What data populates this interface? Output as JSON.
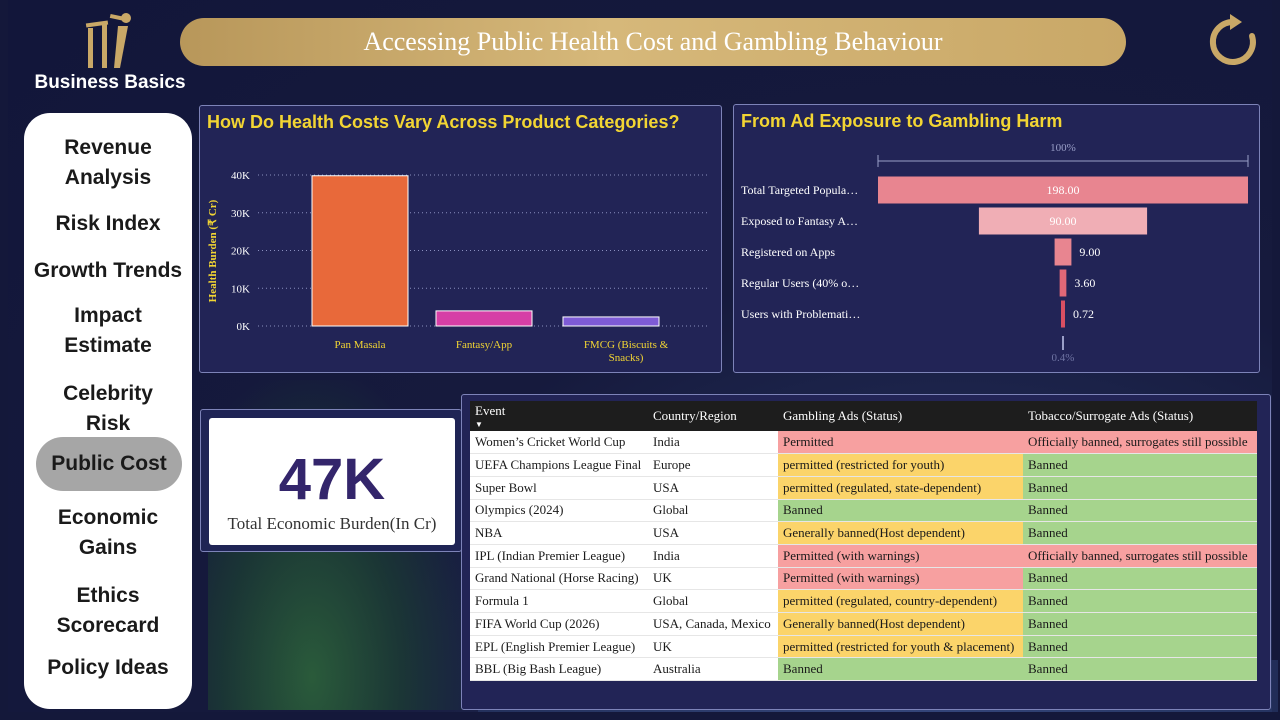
{
  "brand": {
    "name": "Business Basics"
  },
  "header": {
    "title": "Accessing Public Health Cost and Gambling Behaviour"
  },
  "nav": [
    {
      "label": "Revenue Analysis",
      "lines": [
        "Revenue",
        "Analysis"
      ],
      "active": false
    },
    {
      "label": "Risk Index",
      "lines": [
        "Risk Index"
      ],
      "active": false
    },
    {
      "label": "Growth Trends",
      "lines": [
        "Growth Trends"
      ],
      "active": false
    },
    {
      "label": "Impact Estimate",
      "lines": [
        "Impact",
        "Estimate"
      ],
      "active": false
    },
    {
      "label": "Celebrity Risk",
      "lines": [
        "Celebrity",
        "Risk"
      ],
      "active": false
    },
    {
      "label": "Public Cost",
      "lines": [
        "Public Cost"
      ],
      "active": true
    },
    {
      "label": "Economic Gains",
      "lines": [
        "Economic",
        "Gains"
      ],
      "active": false
    },
    {
      "label": "Ethics Scorecard",
      "lines": [
        "Ethics",
        "Scorecard"
      ],
      "active": false
    },
    {
      "label": "Policy Ideas",
      "lines": [
        "Policy Ideas"
      ],
      "active": false
    }
  ],
  "chart_data": [
    {
      "type": "bar",
      "title": "How Do Health Costs Vary Across Product Categories?",
      "ylabel": "Health Burden (₹ Cr)",
      "ylim": [
        0,
        40000
      ],
      "yticks": [
        "0K",
        "10K",
        "20K",
        "30K",
        "40K"
      ],
      "categories": [
        "Pan Masala",
        "Fantasy/App",
        "FMCG (Biscuits & Snacks)"
      ],
      "values": [
        39800,
        4000,
        2400
      ],
      "colors": [
        "#e8693a",
        "#d63fa6",
        "#7e5bd6"
      ]
    },
    {
      "type": "funnel",
      "title": "From Ad Exposure to Gambling Harm",
      "top_label": "100%",
      "bottom_label": "0.4%",
      "stages": [
        {
          "label": "Total Targeted Popula…",
          "value": 198.0,
          "value_label": "198.00",
          "color": "#e88590"
        },
        {
          "label": "Exposed to Fantasy A…",
          "value": 90.0,
          "value_label": "90.00",
          "color": "#f0aeb5"
        },
        {
          "label": "Registered on Apps",
          "value": 9.0,
          "value_label": "9.00",
          "color": "#e88590"
        },
        {
          "label": "Regular Users (40% o…",
          "value": 3.6,
          "value_label": "3.60",
          "color": "#e06877"
        },
        {
          "label": "Users with Problemati…",
          "value": 0.72,
          "value_label": "0.72",
          "color": "#d94f62"
        }
      ]
    }
  ],
  "kpi": {
    "value": "47K",
    "label": "Total Economic Burden(In Cr)"
  },
  "table": {
    "columns": [
      "Event",
      "Country/Region",
      "Gambling Ads (Status)",
      "Tobacco/Surrogate Ads (Status)"
    ],
    "status_colors": {
      "red": "#f7a0a0",
      "yellow": "#fbd46a",
      "green": "#a6d48d"
    },
    "rows": [
      {
        "event": "Women’s Cricket World Cup",
        "region": "India",
        "gambling": "Permitted",
        "g_color": "red",
        "tobacco": "Officially banned, surrogates still possible",
        "t_color": "red"
      },
      {
        "event": "UEFA Champions League Final",
        "region": "Europe",
        "gambling": "permitted (restricted for youth)",
        "g_color": "yellow",
        "tobacco": "Banned",
        "t_color": "green"
      },
      {
        "event": "Super Bowl",
        "region": "USA",
        "gambling": "permitted (regulated, state-dependent)",
        "g_color": "yellow",
        "tobacco": "Banned",
        "t_color": "green"
      },
      {
        "event": "Olympics (2024)",
        "region": "Global",
        "gambling": "Banned",
        "g_color": "green",
        "tobacco": "Banned",
        "t_color": "green"
      },
      {
        "event": "NBA",
        "region": "USA",
        "gambling": "Generally banned(Host dependent)",
        "g_color": "yellow",
        "tobacco": "Banned",
        "t_color": "green"
      },
      {
        "event": "IPL (Indian Premier League)",
        "region": "India",
        "gambling": "Permitted (with warnings)",
        "g_color": "red",
        "tobacco": "Officially banned, surrogates still possible",
        "t_color": "red"
      },
      {
        "event": "Grand National (Horse Racing)",
        "region": "UK",
        "gambling": "Permitted (with warnings)",
        "g_color": "red",
        "tobacco": "Banned",
        "t_color": "green"
      },
      {
        "event": "Formula 1",
        "region": "Global",
        "gambling": "permitted (regulated, country-dependent)",
        "g_color": "yellow",
        "tobacco": "Banned",
        "t_color": "green"
      },
      {
        "event": "FIFA World Cup (2026)",
        "region": "USA, Canada, Mexico",
        "gambling": "Generally banned(Host dependent)",
        "g_color": "yellow",
        "tobacco": "Banned",
        "t_color": "green"
      },
      {
        "event": "EPL (English Premier League)",
        "region": "UK",
        "gambling": "permitted (restricted for youth & placement)",
        "g_color": "yellow",
        "tobacco": "Banned",
        "t_color": "green"
      },
      {
        "event": "BBL (Big Bash League)",
        "region": "Australia",
        "gambling": "Banned",
        "g_color": "green",
        "tobacco": "Banned",
        "t_color": "green"
      }
    ]
  }
}
